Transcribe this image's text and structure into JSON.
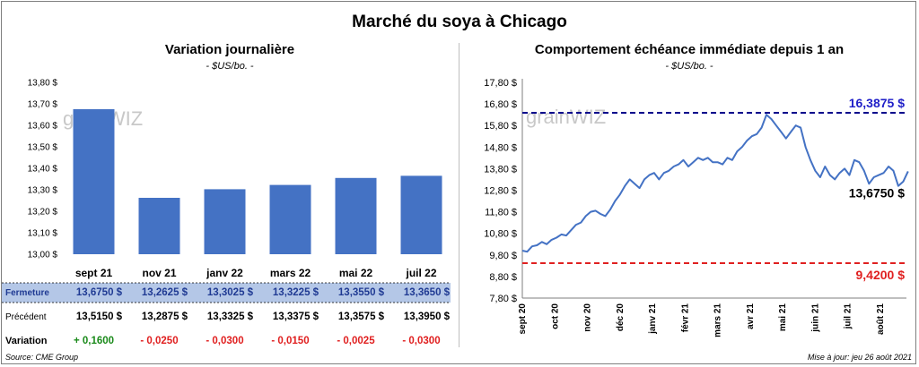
{
  "page": {
    "title": "Marché du soya à Chicago",
    "source": "Source: CME Group",
    "updated": "Mise à jour: jeu 26 août 2021",
    "watermark": "grainWIZ"
  },
  "colors": {
    "bar": "#4472c4",
    "line": "#4472c4",
    "high_line": "#00008b",
    "high_label": "#1f1fc8",
    "low_line": "#e02020",
    "low_label": "#e02020",
    "positive": "#1a8a1a",
    "negative": "#e02020",
    "row_highlight": "#b4c7e7"
  },
  "chart_data": [
    {
      "type": "bar",
      "title": "Variation journalière",
      "subtitle": "- $US/bo. -",
      "categories": [
        "sept 21",
        "nov 21",
        "janv 22",
        "mars 22",
        "mai 22",
        "juil 22"
      ],
      "values": [
        13.675,
        13.2625,
        13.3025,
        13.3225,
        13.355,
        13.365
      ],
      "ylim": [
        13.0,
        13.8
      ],
      "yticks": [
        "13,00 $",
        "13,10 $",
        "13,20 $",
        "13,30 $",
        "13,40 $",
        "13,50 $",
        "13,60 $",
        "13,70 $",
        "13,80 $"
      ],
      "grid": false,
      "table": {
        "rows": [
          {
            "label": "Fermeture",
            "values": [
              "13,6750 $",
              "13,2625 $",
              "13,3025 $",
              "13,3225 $",
              "13,3550 $",
              "13,3650 $"
            ],
            "highlight": true
          },
          {
            "label": "Précédent",
            "values": [
              "13,5150 $",
              "13,2875 $",
              "13,3325 $",
              "13,3375 $",
              "13,3575 $",
              "13,3950 $"
            ],
            "highlight": false
          },
          {
            "label": "Variation",
            "values": [
              "+ 0,1600",
              "- 0,0250",
              "- 0,0300",
              "- 0,0150",
              "- 0,0025",
              "- 0,0300"
            ],
            "signs": [
              1,
              -1,
              -1,
              -1,
              -1,
              -1
            ],
            "highlight": false
          }
        ]
      }
    },
    {
      "type": "line",
      "title": "Comportement  échéance immédiate depuis 1 an",
      "subtitle": "- $US/bo. -",
      "ylim": [
        7.8,
        17.8
      ],
      "yticks": [
        "7,80 $",
        "8,80 $",
        "9,80 $",
        "10,80 $",
        "11,80 $",
        "12,80 $",
        "13,80 $",
        "14,80 $",
        "15,80 $",
        "16,80 $",
        "17,80 $"
      ],
      "xlabels": [
        "sept 20",
        "oct 20",
        "nov 20",
        "déc 20",
        "janv 21",
        "févr 21",
        "mars 21",
        "avr 21",
        "mai 21",
        "juin 21",
        "juil 21",
        "août 21"
      ],
      "series": [
        {
          "x": [
            0,
            0.15,
            0.3,
            0.45,
            0.6,
            0.75,
            0.9,
            1.05,
            1.2,
            1.35,
            1.5,
            1.65,
            1.8,
            1.95,
            2.1,
            2.25,
            2.4,
            2.55,
            2.7,
            2.85,
            3.0,
            3.15,
            3.3,
            3.45,
            3.6,
            3.75,
            3.9,
            4.05,
            4.2,
            4.35,
            4.5,
            4.65,
            4.8,
            4.95,
            5.1,
            5.25,
            5.4,
            5.55,
            5.7,
            5.85,
            6.0,
            6.15,
            6.3,
            6.45,
            6.6,
            6.75,
            6.9,
            7.05,
            7.2,
            7.35,
            7.5,
            7.65,
            7.8,
            7.95,
            8.1,
            8.25,
            8.4,
            8.55,
            8.7,
            8.85,
            9.0,
            9.15,
            9.3,
            9.45,
            9.6,
            9.75,
            9.9,
            10.05,
            10.2,
            10.35,
            10.5,
            10.65,
            10.8,
            10.95,
            11.1,
            11.25,
            11.4,
            11.55,
            11.7,
            11.85
          ],
          "values": [
            10.0,
            9.95,
            10.2,
            10.25,
            10.4,
            10.3,
            10.5,
            10.6,
            10.75,
            10.7,
            10.95,
            11.2,
            11.3,
            11.6,
            11.8,
            11.85,
            11.7,
            11.6,
            11.9,
            12.3,
            12.6,
            13.0,
            13.3,
            13.1,
            12.9,
            13.3,
            13.5,
            13.6,
            13.3,
            13.6,
            13.7,
            13.9,
            14.0,
            14.2,
            13.9,
            14.1,
            14.3,
            14.2,
            14.3,
            14.1,
            14.1,
            14.0,
            14.3,
            14.2,
            14.6,
            14.8,
            15.1,
            15.3,
            15.4,
            15.7,
            16.3,
            16.1,
            15.8,
            15.5,
            15.2,
            15.5,
            15.8,
            15.7,
            14.8,
            14.2,
            13.7,
            13.4,
            13.9,
            13.5,
            13.3,
            13.6,
            13.8,
            13.5,
            14.2,
            14.1,
            13.7,
            13.1,
            13.4,
            13.5,
            13.6,
            13.9,
            13.7,
            13.0,
            13.2,
            13.675
          ]
        }
      ],
      "high_value": 16.3875,
      "high_label": "16,3875 $",
      "low_value": 9.42,
      "low_label": "9,4200 $",
      "last_label": "13,6750 $",
      "grid": false
    }
  ]
}
